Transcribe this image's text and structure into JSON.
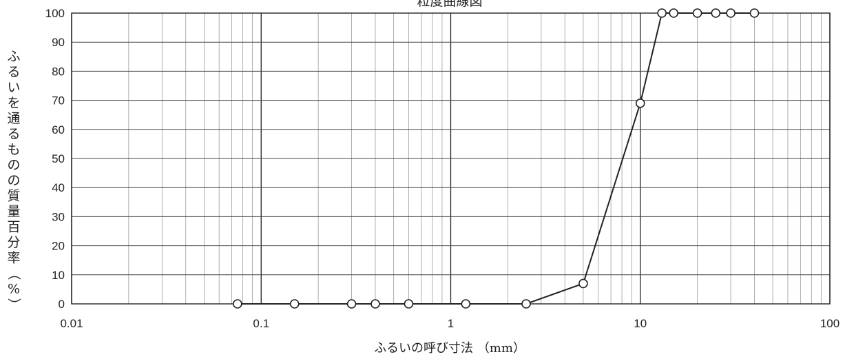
{
  "chart_data": {
    "type": "line",
    "title": "粒度曲線図",
    "xlabel": "ふるいの呼び寸法 （mm）",
    "ylabel": "ふるいを通るものの質量百分率 （%）",
    "x_scale": "log",
    "xlim": [
      0.01,
      100
    ],
    "ylim": [
      0,
      100
    ],
    "x_ticks": [
      "0.01",
      "0.1",
      "1",
      "10",
      "100"
    ],
    "y_ticks": [
      "0",
      "10",
      "20",
      "30",
      "40",
      "50",
      "60",
      "70",
      "80",
      "90",
      "100"
    ],
    "grid": true,
    "series": [
      {
        "x": [
          0.075,
          0.15,
          0.3,
          0.4,
          0.6,
          1.2,
          2.5,
          5,
          10,
          13,
          15,
          20,
          25,
          30,
          40
        ],
        "y": [
          0,
          0,
          0,
          0,
          0,
          0,
          0,
          7,
          69,
          100,
          100,
          100,
          100,
          100,
          100
        ],
        "marker": "open-circle",
        "color": "#222222"
      }
    ]
  }
}
